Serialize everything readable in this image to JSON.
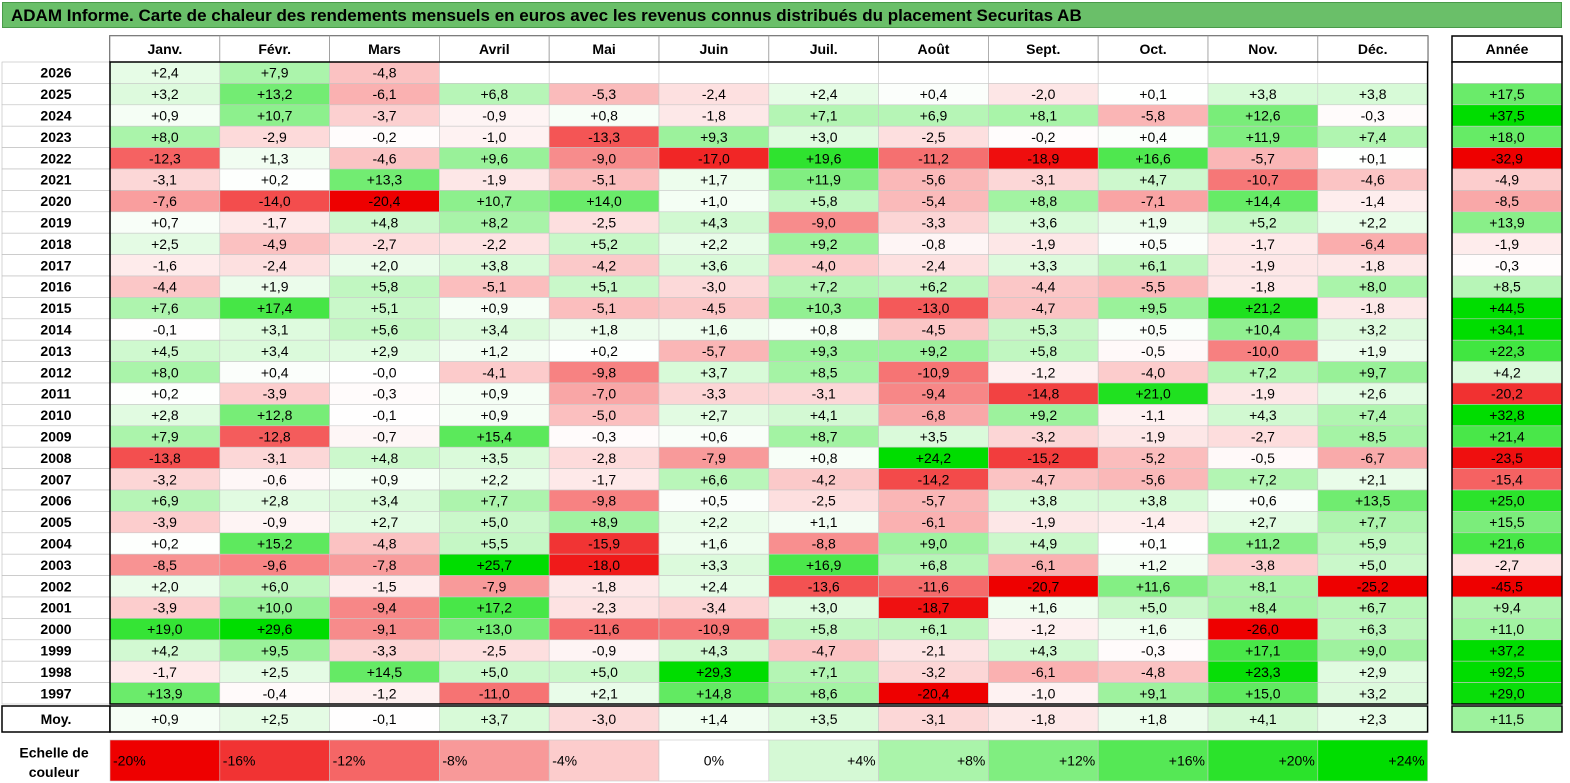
{
  "title": "ADAM Informe. Carte de chaleur des rendements mensuels en euros avec les revenus connus distribués du placement Securitas AB",
  "chart_data": {
    "type": "heatmap",
    "months": [
      "Janv.",
      "Févr.",
      "Mars",
      "Avril",
      "Mai",
      "Juin",
      "Juil.",
      "Août",
      "Sept.",
      "Oct.",
      "Nov.",
      "Déc."
    ],
    "year_header": "Année",
    "rows": [
      {
        "label": "2026",
        "values": [
          "+2,4",
          "+7,9",
          "-4,8",
          "",
          "",
          "",
          "",
          "",
          "",
          "",
          "",
          ""
        ],
        "year": ""
      },
      {
        "label": "2025",
        "values": [
          "+3,2",
          "+13,2",
          "-6,1",
          "+6,8",
          "-5,3",
          "-2,4",
          "+2,4",
          "+0,4",
          "-2,0",
          "+0,1",
          "+3,8",
          "+3,8"
        ],
        "year": "+17,5"
      },
      {
        "label": "2024",
        "values": [
          "+0,9",
          "+10,7",
          "-3,7",
          "-0,9",
          "+0,8",
          "-1,8",
          "+7,1",
          "+6,9",
          "+8,1",
          "-5,8",
          "+12,6",
          "-0,3"
        ],
        "year": "+37,5"
      },
      {
        "label": "2023",
        "values": [
          "+8,0",
          "-2,9",
          "-0,2",
          "-1,0",
          "-13,3",
          "+9,3",
          "+3,0",
          "-2,5",
          "-0,2",
          "+0,4",
          "+11,9",
          "+7,4"
        ],
        "year": "+18,0"
      },
      {
        "label": "2022",
        "values": [
          "-12,3",
          "+1,3",
          "-4,6",
          "+9,6",
          "-9,0",
          "-17,0",
          "+19,6",
          "-11,2",
          "-18,9",
          "+16,6",
          "-5,7",
          "+0,1"
        ],
        "year": "-32,9"
      },
      {
        "label": "2021",
        "values": [
          "-3,1",
          "+0,2",
          "+13,3",
          "-1,9",
          "-5,1",
          "+1,7",
          "+11,9",
          "-5,6",
          "-3,1",
          "+4,7",
          "-10,7",
          "-4,6"
        ],
        "year": "-4,9"
      },
      {
        "label": "2020",
        "values": [
          "-7,6",
          "-14,0",
          "-20,4",
          "+10,7",
          "+14,0",
          "+1,0",
          "+5,8",
          "-5,4",
          "+8,8",
          "-7,1",
          "+14,4",
          "-1,4"
        ],
        "year": "-8,5"
      },
      {
        "label": "2019",
        "values": [
          "+0,7",
          "-1,7",
          "+4,8",
          "+8,2",
          "-2,5",
          "+4,3",
          "-9,0",
          "-3,3",
          "+3,6",
          "+1,9",
          "+5,2",
          "+2,2"
        ],
        "year": "+13,9"
      },
      {
        "label": "2018",
        "values": [
          "+2,5",
          "-4,9",
          "-2,7",
          "-2,2",
          "+5,2",
          "+2,2",
          "+9,2",
          "-0,8",
          "-1,9",
          "+0,5",
          "-1,7",
          "-6,4"
        ],
        "year": "-1,9"
      },
      {
        "label": "2017",
        "values": [
          "-1,6",
          "-2,4",
          "+2,0",
          "+3,8",
          "-4,2",
          "+3,6",
          "-4,0",
          "-2,4",
          "+3,3",
          "+6,1",
          "-1,9",
          "-1,8"
        ],
        "year": "-0,3"
      },
      {
        "label": "2016",
        "values": [
          "-4,4",
          "+1,9",
          "+5,8",
          "-5,1",
          "+5,1",
          "-3,0",
          "+7,2",
          "+6,2",
          "-4,4",
          "-5,5",
          "-1,8",
          "+8,0"
        ],
        "year": "+8,5"
      },
      {
        "label": "2015",
        "values": [
          "+7,6",
          "+17,4",
          "+5,1",
          "+0,9",
          "-5,1",
          "-4,5",
          "+10,3",
          "-13,0",
          "-4,7",
          "+9,5",
          "+21,2",
          "-1,8"
        ],
        "year": "+44,5"
      },
      {
        "label": "2014",
        "values": [
          "-0,1",
          "+3,1",
          "+5,6",
          "+3,4",
          "+1,8",
          "+1,6",
          "+0,8",
          "-4,5",
          "+5,3",
          "+0,5",
          "+10,4",
          "+3,2"
        ],
        "year": "+34,1"
      },
      {
        "label": "2013",
        "values": [
          "+4,5",
          "+3,4",
          "+2,9",
          "+1,2",
          "+0,2",
          "-5,7",
          "+9,3",
          "+9,2",
          "+5,8",
          "-0,5",
          "-10,0",
          "+1,9"
        ],
        "year": "+22,3"
      },
      {
        "label": "2012",
        "values": [
          "+8,0",
          "+0,4",
          "-0,0",
          "-4,1",
          "-9,8",
          "+3,7",
          "+8,5",
          "-10,9",
          "-1,2",
          "-4,0",
          "+7,2",
          "+9,7"
        ],
        "year": "+4,2"
      },
      {
        "label": "2011",
        "values": [
          "+0,2",
          "-3,9",
          "-0,3",
          "+0,9",
          "-7,0",
          "-3,3",
          "-3,1",
          "-9,4",
          "-14,8",
          "+21,0",
          "-1,9",
          "+2,6"
        ],
        "year": "-20,2"
      },
      {
        "label": "2010",
        "values": [
          "+2,8",
          "+12,8",
          "-0,1",
          "+0,9",
          "-5,0",
          "+2,7",
          "+4,1",
          "-6,8",
          "+9,2",
          "-1,1",
          "+4,3",
          "+7,4"
        ],
        "year": "+32,8"
      },
      {
        "label": "2009",
        "values": [
          "+7,9",
          "-12,8",
          "-0,7",
          "+15,4",
          "-0,3",
          "+0,6",
          "+8,7",
          "+3,5",
          "-3,2",
          "-1,9",
          "-2,7",
          "+8,5"
        ],
        "year": "+21,4"
      },
      {
        "label": "2008",
        "values": [
          "-13,8",
          "-3,1",
          "+4,8",
          "+3,5",
          "-2,8",
          "-7,9",
          "+0,8",
          "+24,2",
          "-15,2",
          "-5,2",
          "-0,5",
          "-6,7"
        ],
        "year": "-23,5"
      },
      {
        "label": "2007",
        "values": [
          "-3,2",
          "-0,6",
          "+0,9",
          "+2,2",
          "-1,7",
          "+6,6",
          "-4,2",
          "-14,2",
          "-4,7",
          "-5,6",
          "+7,2",
          "+2,1"
        ],
        "year": "-15,4"
      },
      {
        "label": "2006",
        "values": [
          "+6,9",
          "+2,8",
          "+3,4",
          "+7,7",
          "-9,8",
          "+0,5",
          "-2,5",
          "-5,7",
          "+3,8",
          "+3,8",
          "+0,6",
          "+13,5"
        ],
        "year": "+25,0"
      },
      {
        "label": "2005",
        "values": [
          "-3,9",
          "-0,9",
          "+2,7",
          "+5,0",
          "+8,9",
          "+2,2",
          "+1,1",
          "-6,1",
          "-1,9",
          "-1,4",
          "+2,7",
          "+7,7"
        ],
        "year": "+15,5"
      },
      {
        "label": "2004",
        "values": [
          "+0,2",
          "+15,2",
          "-4,8",
          "+5,5",
          "-15,9",
          "+1,6",
          "-8,8",
          "+9,0",
          "+4,9",
          "+0,1",
          "+11,2",
          "+5,9"
        ],
        "year": "+21,6"
      },
      {
        "label": "2003",
        "values": [
          "-8,5",
          "-9,6",
          "-7,8",
          "+25,7",
          "-18,0",
          "+3,3",
          "+16,9",
          "+6,8",
          "-6,1",
          "+1,2",
          "-3,8",
          "+5,0"
        ],
        "year": "-2,7"
      },
      {
        "label": "2002",
        "values": [
          "+2,0",
          "+6,0",
          "-1,5",
          "-7,9",
          "-1,8",
          "+2,4",
          "-13,6",
          "-11,6",
          "-20,7",
          "+11,6",
          "+8,1",
          "-25,2"
        ],
        "year": "-45,5"
      },
      {
        "label": "2001",
        "values": [
          "-3,9",
          "+10,0",
          "-9,4",
          "+17,2",
          "-2,3",
          "-3,4",
          "+3,0",
          "-18,7",
          "+1,6",
          "+5,0",
          "+8,4",
          "+6,7"
        ],
        "year": "+9,4"
      },
      {
        "label": "2000",
        "values": [
          "+19,0",
          "+29,6",
          "-9,1",
          "+13,0",
          "-11,6",
          "-10,9",
          "+5,8",
          "+6,1",
          "-1,2",
          "+1,6",
          "-26,0",
          "+6,3"
        ],
        "year": "+11,0"
      },
      {
        "label": "1999",
        "values": [
          "+4,2",
          "+9,5",
          "-3,3",
          "-2,5",
          "-0,9",
          "+4,3",
          "-4,7",
          "-2,1",
          "+4,3",
          "-0,3",
          "+17,1",
          "+9,0"
        ],
        "year": "+37,2"
      },
      {
        "label": "1998",
        "values": [
          "-1,7",
          "+2,5",
          "+14,5",
          "+5,0",
          "+5,0",
          "+29,3",
          "+7,1",
          "-3,2",
          "-6,1",
          "-4,8",
          "+23,3",
          "+2,9"
        ],
        "year": "+92,5"
      },
      {
        "label": "1997",
        "values": [
          "+13,9",
          "-0,4",
          "-1,2",
          "-11,0",
          "+2,1",
          "+14,8",
          "+8,6",
          "-20,4",
          "-1,0",
          "+9,1",
          "+15,0",
          "+3,2"
        ],
        "year": "+29,0"
      }
    ],
    "average": {
      "label": "Moy.",
      "values": [
        "+0,9",
        "+2,5",
        "-0,1",
        "+3,7",
        "-3,0",
        "+1,4",
        "+3,5",
        "-3,1",
        "-1,8",
        "+1,8",
        "+4,1",
        "+2,3"
      ],
      "year": "+11,5"
    },
    "scale": {
      "label_line1": "Echelle de",
      "label_line2": "couleur",
      "steps": [
        "-20%",
        "-16%",
        "-12%",
        "-8%",
        "-4%",
        "0%",
        "+4%",
        "+8%",
        "+12%",
        "+16%",
        "+20%",
        "+24%"
      ]
    },
    "colors": {
      "negative_max": "#ee0000",
      "neutral": "#ffffff",
      "positive_max": "#00dd00",
      "title_bg": "#6abf69"
    }
  }
}
